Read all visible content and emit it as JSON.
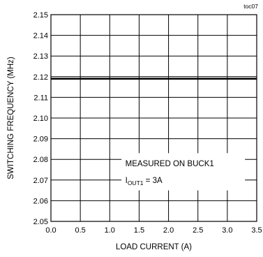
{
  "chart_data": {
    "type": "line",
    "tag": "toc07",
    "xlabel": "LOAD CURRENT (A)",
    "ylabel": "SWITCHING FREQUENCY (MHz)",
    "xlim": [
      0.0,
      3.5
    ],
    "ylim": [
      2.05,
      2.15
    ],
    "x_ticks": [
      0.0,
      0.5,
      1.0,
      1.5,
      2.0,
      2.5,
      3.0,
      3.5
    ],
    "x_tick_labels": [
      "0.0",
      "0.5",
      "1.0",
      "1.5",
      "2.0",
      "2.5",
      "3.0",
      "3.5"
    ],
    "y_ticks": [
      2.05,
      2.06,
      2.07,
      2.08,
      2.09,
      2.1,
      2.11,
      2.12,
      2.13,
      2.14,
      2.15
    ],
    "y_tick_labels": [
      "2.05",
      "2.06",
      "2.07",
      "2.08",
      "2.09",
      "2.10",
      "2.11",
      "2.12",
      "2.13",
      "2.14",
      "2.15"
    ],
    "grid": true,
    "series": [
      {
        "x": [
          0.0,
          0.5,
          1.0,
          1.5,
          2.0,
          2.5,
          3.0,
          3.5
        ],
        "y": [
          2.119,
          2.119,
          2.119,
          2.119,
          2.119,
          2.119,
          2.119,
          2.119
        ]
      }
    ],
    "annotation": {
      "line1": "MEASURED ON BUCK1",
      "line2_main": "I",
      "line2_sub": "OUT1",
      "line2_rest": " = 3A"
    }
  }
}
